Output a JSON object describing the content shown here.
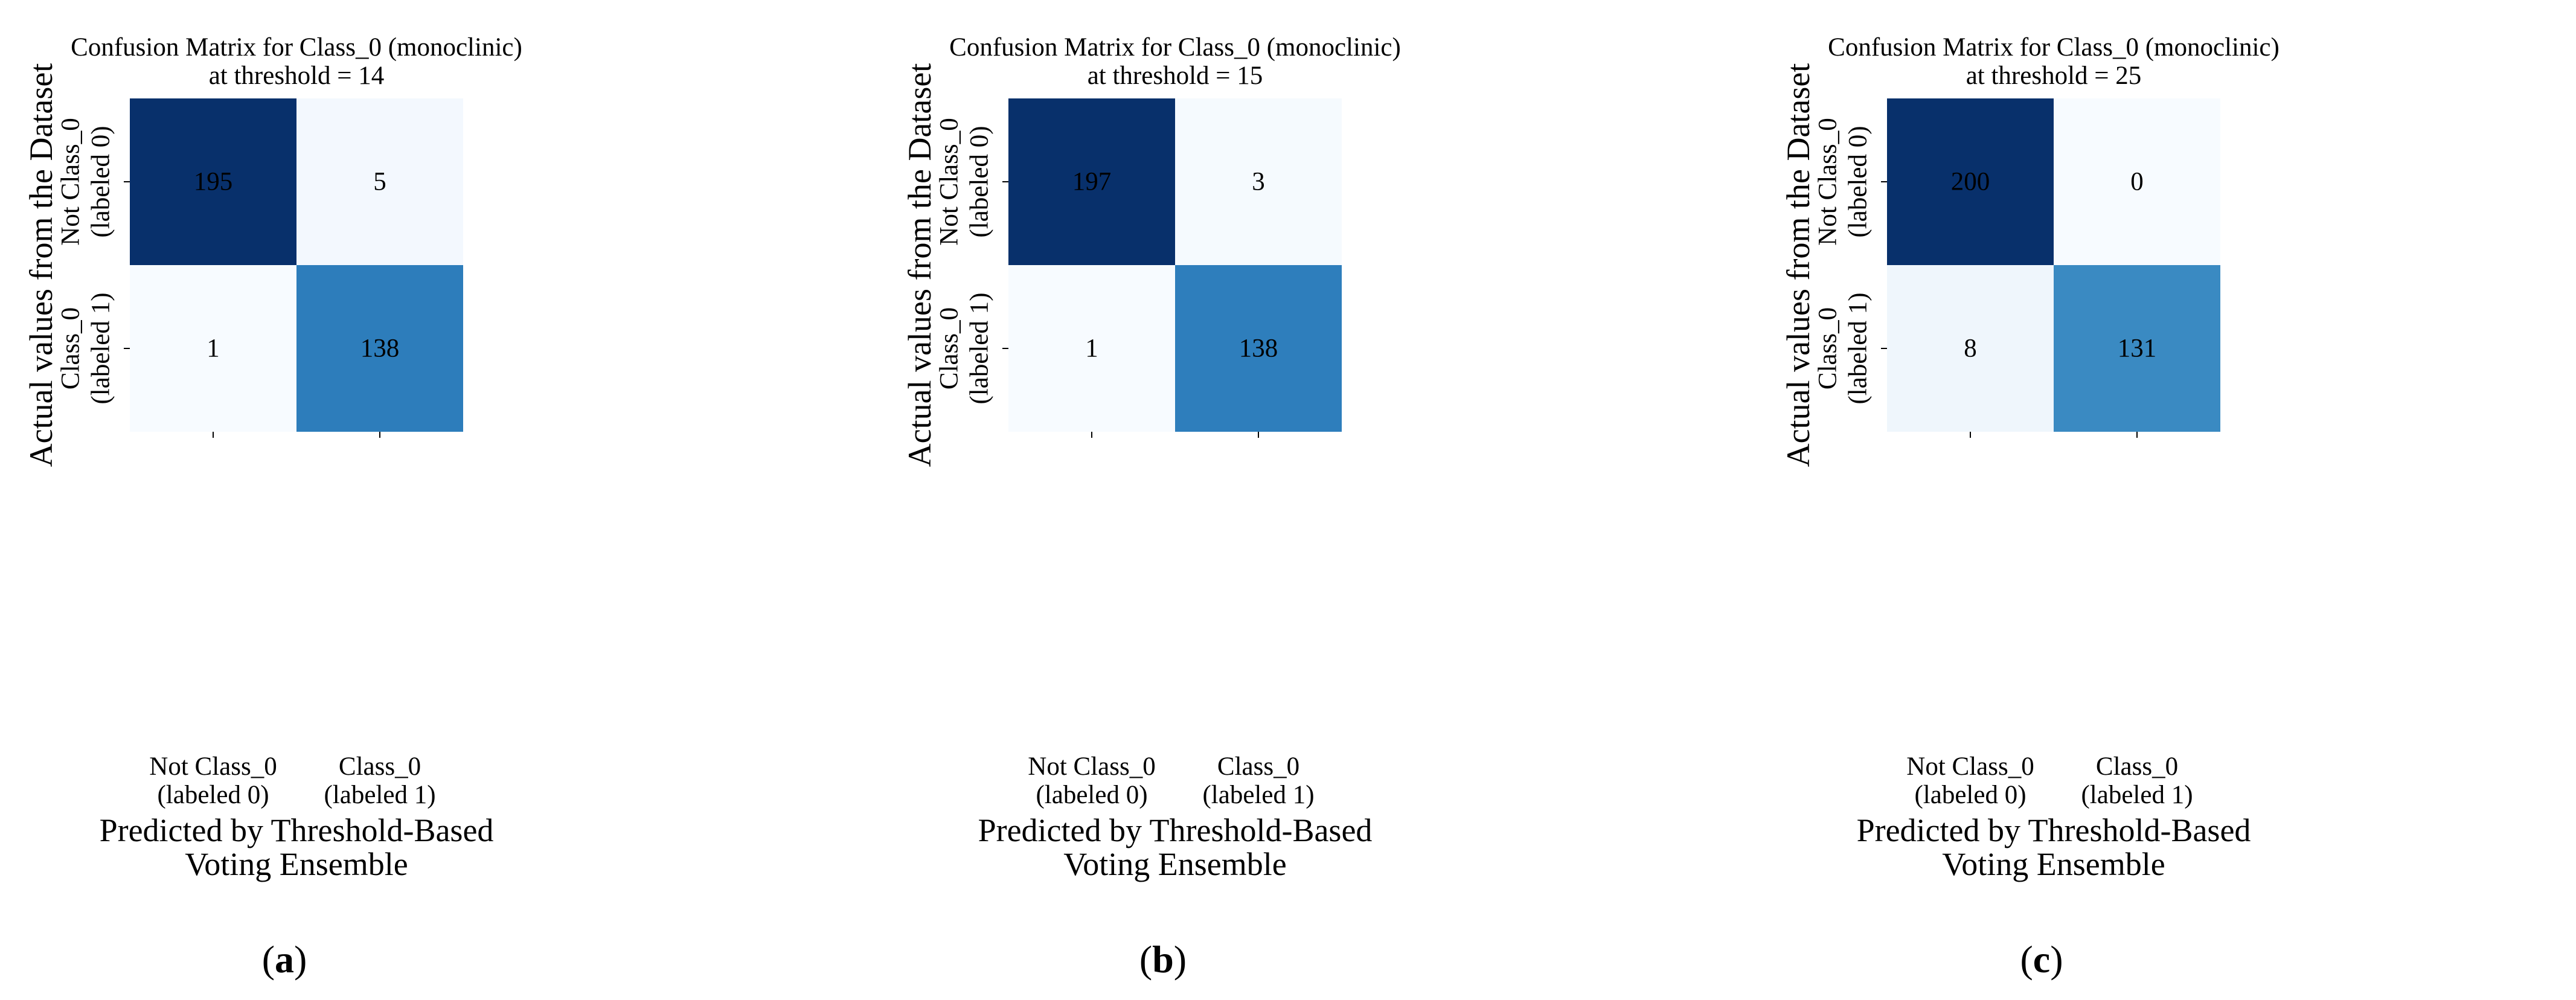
{
  "chart_data": [
    {
      "type": "heatmap",
      "title": [
        "Confusion Matrix for Class_0 (monoclinic)",
        "at threshold = 14"
      ],
      "xlabel": [
        "Predicted by Threshold-Based",
        "Voting Ensemble"
      ],
      "ylabel": "Actual values from the Dataset",
      "x_tick_labels": [
        [
          "Not Class_0",
          "(labeled 0)"
        ],
        [
          "Class_0",
          "(labeled 1)"
        ]
      ],
      "y_tick_labels": [
        [
          "Not Class_0",
          "(labeled 0)"
        ],
        [
          "Class_0",
          "(labeled 1)"
        ]
      ],
      "matrix": [
        [
          195,
          5
        ],
        [
          1,
          138
        ]
      ],
      "colormap": "Blues",
      "colorbar": false,
      "caption": "(a)"
    },
    {
      "type": "heatmap",
      "title": [
        "Confusion Matrix for Class_0 (monoclinic)",
        "at threshold = 15"
      ],
      "xlabel": [
        "Predicted by Threshold-Based",
        "Voting Ensemble"
      ],
      "ylabel": "Actual values from the Dataset",
      "x_tick_labels": [
        [
          "Not Class_0",
          "(labeled 0)"
        ],
        [
          "Class_0",
          "(labeled 1)"
        ]
      ],
      "y_tick_labels": [
        [
          "Not Class_0",
          "(labeled 0)"
        ],
        [
          "Class_0",
          "(labeled 1)"
        ]
      ],
      "matrix": [
        [
          197,
          3
        ],
        [
          1,
          138
        ]
      ],
      "colormap": "Blues",
      "colorbar": false,
      "caption": "(b)"
    },
    {
      "type": "heatmap",
      "title": [
        "Confusion Matrix for Class_0 (monoclinic)",
        "at threshold = 25"
      ],
      "xlabel": [
        "Predicted by Threshold-Based",
        "Voting Ensemble"
      ],
      "ylabel": "Actual values from the Dataset",
      "x_tick_labels": [
        [
          "Not Class_0",
          "(labeled 0)"
        ],
        [
          "Class_0",
          "(labeled 1)"
        ]
      ],
      "y_tick_labels": [
        [
          "Not Class_0",
          "(labeled 0)"
        ],
        [
          "Class_0",
          "(labeled 1)"
        ]
      ],
      "matrix": [
        [
          200,
          0
        ],
        [
          8,
          131
        ]
      ],
      "colormap": "Blues",
      "colorbar": false,
      "caption": "(c)"
    }
  ],
  "colors": {
    "blues_min": "#f7fbff",
    "blues_max": "#08306b",
    "text_light": "#ffffff",
    "text_dark": "#000000"
  }
}
